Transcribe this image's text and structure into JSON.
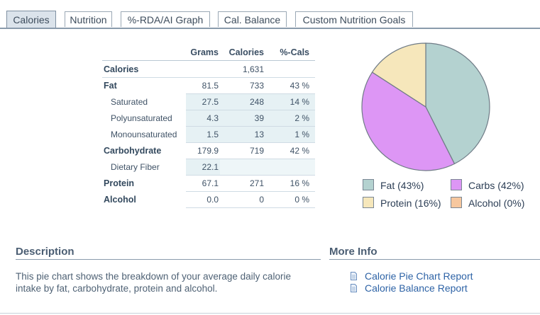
{
  "tabs": [
    {
      "label": "Calories",
      "active": true
    },
    {
      "label": "Nutrition",
      "active": false
    },
    {
      "label": "%-RDA/AI Graph",
      "active": false
    },
    {
      "label": "Cal. Balance",
      "active": false
    },
    {
      "label": "Custom Nutrition Goals",
      "active": false
    }
  ],
  "table": {
    "headers": {
      "grams": "Grams",
      "calories": "Calories",
      "pct": "%-Cals"
    },
    "rows": [
      {
        "label": "Calories",
        "grams": "",
        "calories": "1,631",
        "pct": ""
      },
      {
        "label": "Fat",
        "grams": "81.5",
        "calories": "733",
        "pct": "43 %"
      },
      {
        "label": "Saturated",
        "grams": "27.5",
        "calories": "248",
        "pct": "14 %"
      },
      {
        "label": "Polyunsaturated",
        "grams": "4.3",
        "calories": "39",
        "pct": "2 %"
      },
      {
        "label": "Monounsaturated",
        "grams": "1.5",
        "calories": "13",
        "pct": "1 %"
      },
      {
        "label": "Carbohydrate",
        "grams": "179.9",
        "calories": "719",
        "pct": "42 %"
      },
      {
        "label": "Dietary Fiber",
        "grams": "22.1",
        "calories": "",
        "pct": ""
      },
      {
        "label": "Protein",
        "grams": "67.1",
        "calories": "271",
        "pct": "16 %"
      },
      {
        "label": "Alcohol",
        "grams": "0.0",
        "calories": "0",
        "pct": "0 %"
      }
    ]
  },
  "chart_data": {
    "type": "pie",
    "title": "",
    "slices": [
      {
        "label": "Fat",
        "percent": 43,
        "color": "#b4d2d0"
      },
      {
        "label": "Carbs",
        "percent": 42,
        "color": "#dd96f5"
      },
      {
        "label": "Protein",
        "percent": 16,
        "color": "#f6e7bb"
      },
      {
        "label": "Alcohol",
        "percent": 0,
        "color": "#f6c79e"
      }
    ],
    "legend_position": "bottom",
    "legend": [
      {
        "text": "Fat  (43%)",
        "color": "#b4d2d0"
      },
      {
        "text": "Carbs  (42%)",
        "color": "#dd96f5"
      },
      {
        "text": "Protein  (16%)",
        "color": "#f6e7bb"
      },
      {
        "text": "Alcohol  (0%)",
        "color": "#f6c79e"
      }
    ]
  },
  "description": {
    "title": "Description",
    "text": "This pie chart shows the breakdown of your average daily calorie intake by fat, carbohydrate, protein and alcohol."
  },
  "more_info": {
    "title": "More Info",
    "links": [
      {
        "label": "Calorie Pie Chart Report",
        "icon": "document-icon"
      },
      {
        "label": "Calorie Balance Report",
        "icon": "document-icon"
      }
    ]
  },
  "colors": {
    "accent": "#2e63a6",
    "tab_active_bg": "#dbe3eb",
    "table_shade": "#e6f1f4"
  }
}
